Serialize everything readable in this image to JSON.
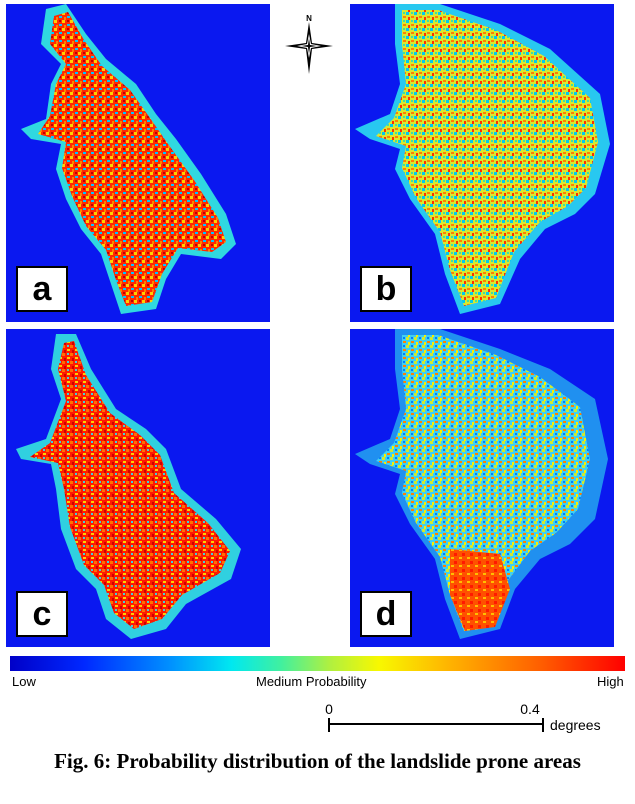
{
  "panels": [
    {
      "id": "a",
      "label": "a"
    },
    {
      "id": "b",
      "label": "b"
    },
    {
      "id": "c",
      "label": "c"
    },
    {
      "id": "d",
      "label": "d"
    }
  ],
  "north_arrow": {
    "label": "N",
    "icon": "compass-star-icon"
  },
  "legend": {
    "low_label": "Low",
    "medium_label": "Medium Probability",
    "high_label": "High",
    "colors": [
      "#0000c8",
      "#0090ff",
      "#00e8f0",
      "#b0f040",
      "#f8f800",
      "#ffb000",
      "#ff0000"
    ]
  },
  "scale": {
    "start": "0",
    "end": "0.4",
    "unit": "degrees"
  },
  "caption": "Fig. 6: Probability distribution of the landslide prone areas",
  "colors": {
    "background": "#0a18f0",
    "high": "#ff2000",
    "low": "#0000c8"
  }
}
